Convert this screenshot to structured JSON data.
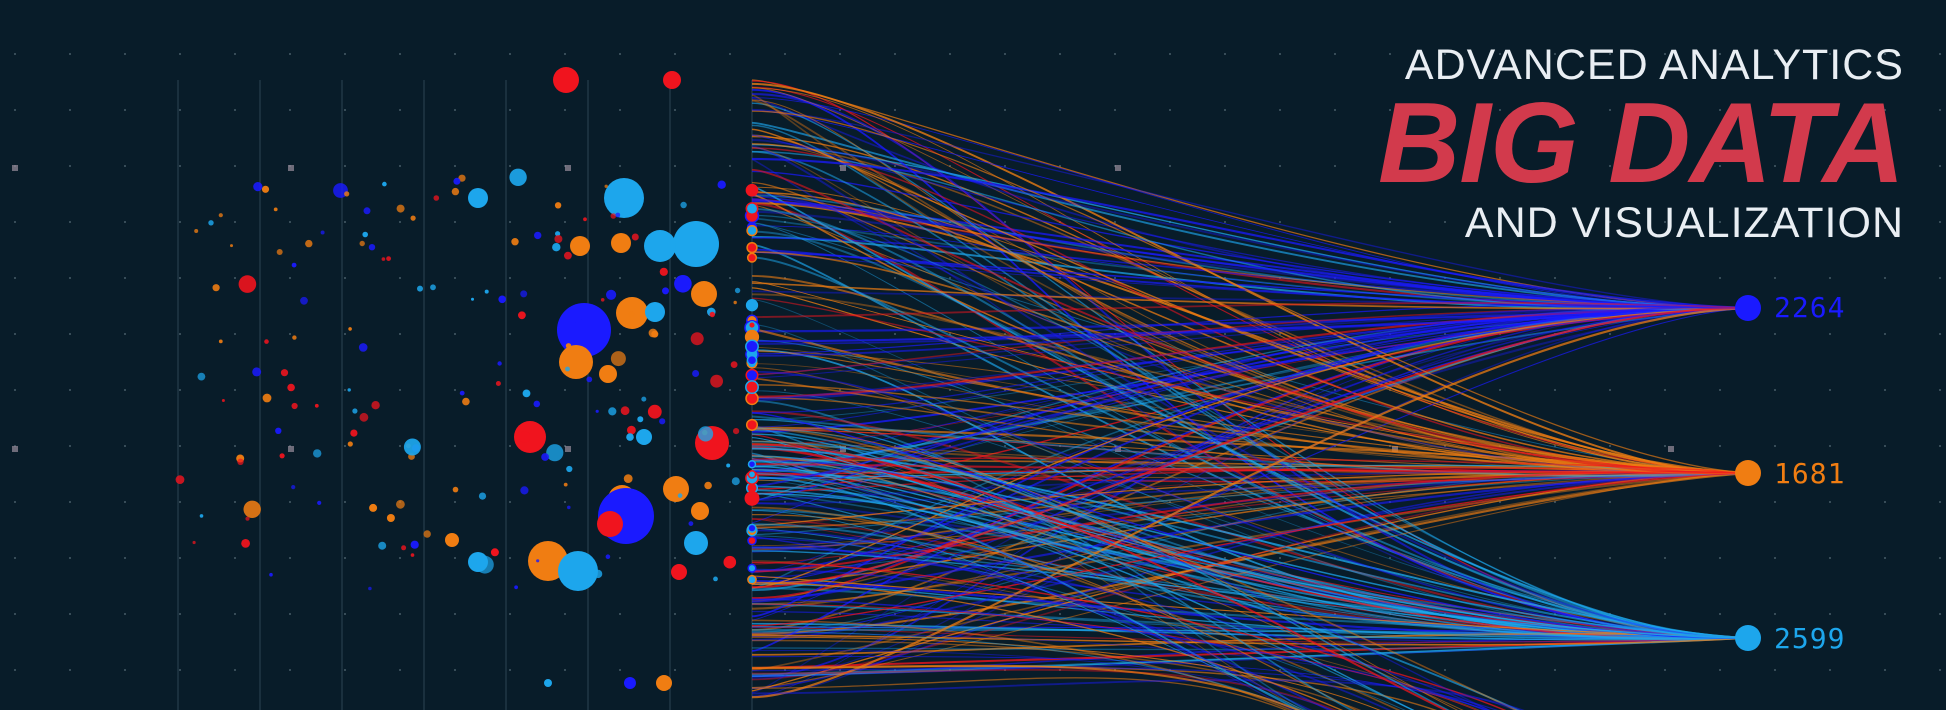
{
  "header": {
    "line1": "ADVANCED ANALYTICS",
    "line2": "BIG DATA",
    "line3": "AND VISUALIZATION"
  },
  "nodes": [
    {
      "label": "2264",
      "color": "#1a1aff"
    },
    {
      "label": "1681",
      "color": "#f07d12"
    },
    {
      "label": "2599",
      "color": "#1da6ec"
    }
  ],
  "colors": {
    "background": "#081c29",
    "title_accent": "#d23a4c",
    "red": "#f0141e",
    "orange": "#f07d12",
    "blue": "#1a1aff",
    "cyan": "#1da6ec",
    "grid_dot": "#5f7480"
  }
}
